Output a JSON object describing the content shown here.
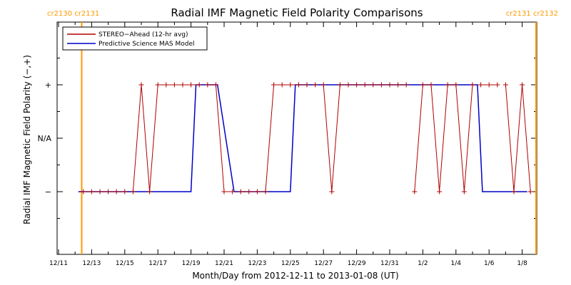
{
  "chart_data": {
    "type": "line",
    "title": "Radial IMF Magnetic Field Polarity Comparisons",
    "xlabel": "Month/Day from 2012-12-11 to 2013-01-08 (UT)",
    "ylabel": "Radial IMF Magnetic Field Polarity (−,+)",
    "x_unit": "days since 2012-12-11 00:00 UT",
    "xlim": [
      0,
      28.5
    ],
    "ylim": [
      -2,
      2
    ],
    "y_tick_values": [
      -1,
      0,
      1
    ],
    "y_tick_labels": [
      "−",
      "N/A",
      "+"
    ],
    "x_tick_values": [
      0,
      2,
      4,
      6,
      8,
      10,
      12,
      14,
      16,
      18,
      20,
      22,
      24,
      26,
      28
    ],
    "x_tick_labels": [
      "12/11",
      "12/13",
      "12/15",
      "12/17",
      "12/19",
      "12/21",
      "12/23",
      "12/25",
      "12/27",
      "12/29",
      "12/31",
      "1/2",
      "1/4",
      "1/6",
      "1/8"
    ],
    "legend_position": "top-left",
    "carrington_markers": [
      {
        "x": 1.4,
        "label": "cr2130 cr2131",
        "side": "left",
        "color": "#ff9900"
      },
      {
        "x": 29.2,
        "label": "cr2131 cr2132",
        "side": "right",
        "color": "#ff9900"
      }
    ],
    "series": [
      {
        "name": "STEREO−Ahead (12-hr avg)",
        "color": "#b00000",
        "marker": "plus",
        "x": [
          1.5,
          2.0,
          2.5,
          3.0,
          3.5,
          4.0,
          4.5,
          5.0,
          5.5,
          6.0,
          6.5,
          7.0,
          7.5,
          8.0,
          8.5,
          9.0,
          9.5,
          10.0,
          10.5,
          11.0,
          11.5,
          12.0,
          12.5,
          13.0,
          13.5,
          14.0,
          14.5,
          15.0,
          15.5,
          16.0,
          16.5,
          17.0,
          17.5,
          18.0,
          18.5,
          19.0,
          19.5,
          20.0,
          20.5,
          21.0,
          21.5,
          22.0,
          22.5,
          23.0,
          23.5,
          24.0,
          24.5,
          25.0,
          25.5,
          26.0,
          26.5,
          27.0,
          27.5,
          28.0,
          28.5
        ],
        "values": [
          -1,
          -1,
          -1,
          -1,
          -1,
          -1,
          -1,
          1,
          -1,
          1,
          1,
          1,
          1,
          1,
          1,
          1,
          1,
          -1,
          -1,
          -1,
          -1,
          -1,
          -1,
          1,
          1,
          1,
          1,
          1,
          1,
          1,
          -1,
          1,
          1,
          1,
          1,
          1,
          1,
          1,
          1,
          1,
          -1,
          1,
          1,
          -1,
          1,
          1,
          -1,
          1,
          1,
          1,
          1,
          1,
          -1,
          1,
          -1
        ],
        "gaps_after_x": [
          4.0,
          8.5,
          10.5,
          21.0,
          25.0,
          26.5
        ],
        "isolated_points_x": [
          15.5
        ]
      },
      {
        "name": "Predictive Science MAS Model",
        "color": "#0000c8",
        "x": [
          1.2,
          8.0,
          8.3,
          9.6,
          10.6,
          14.0,
          14.3,
          25.3,
          25.6,
          28.3
        ],
        "values": [
          -1,
          -1,
          1,
          1,
          -1,
          -1,
          1,
          1,
          -1,
          -1
        ]
      }
    ]
  }
}
